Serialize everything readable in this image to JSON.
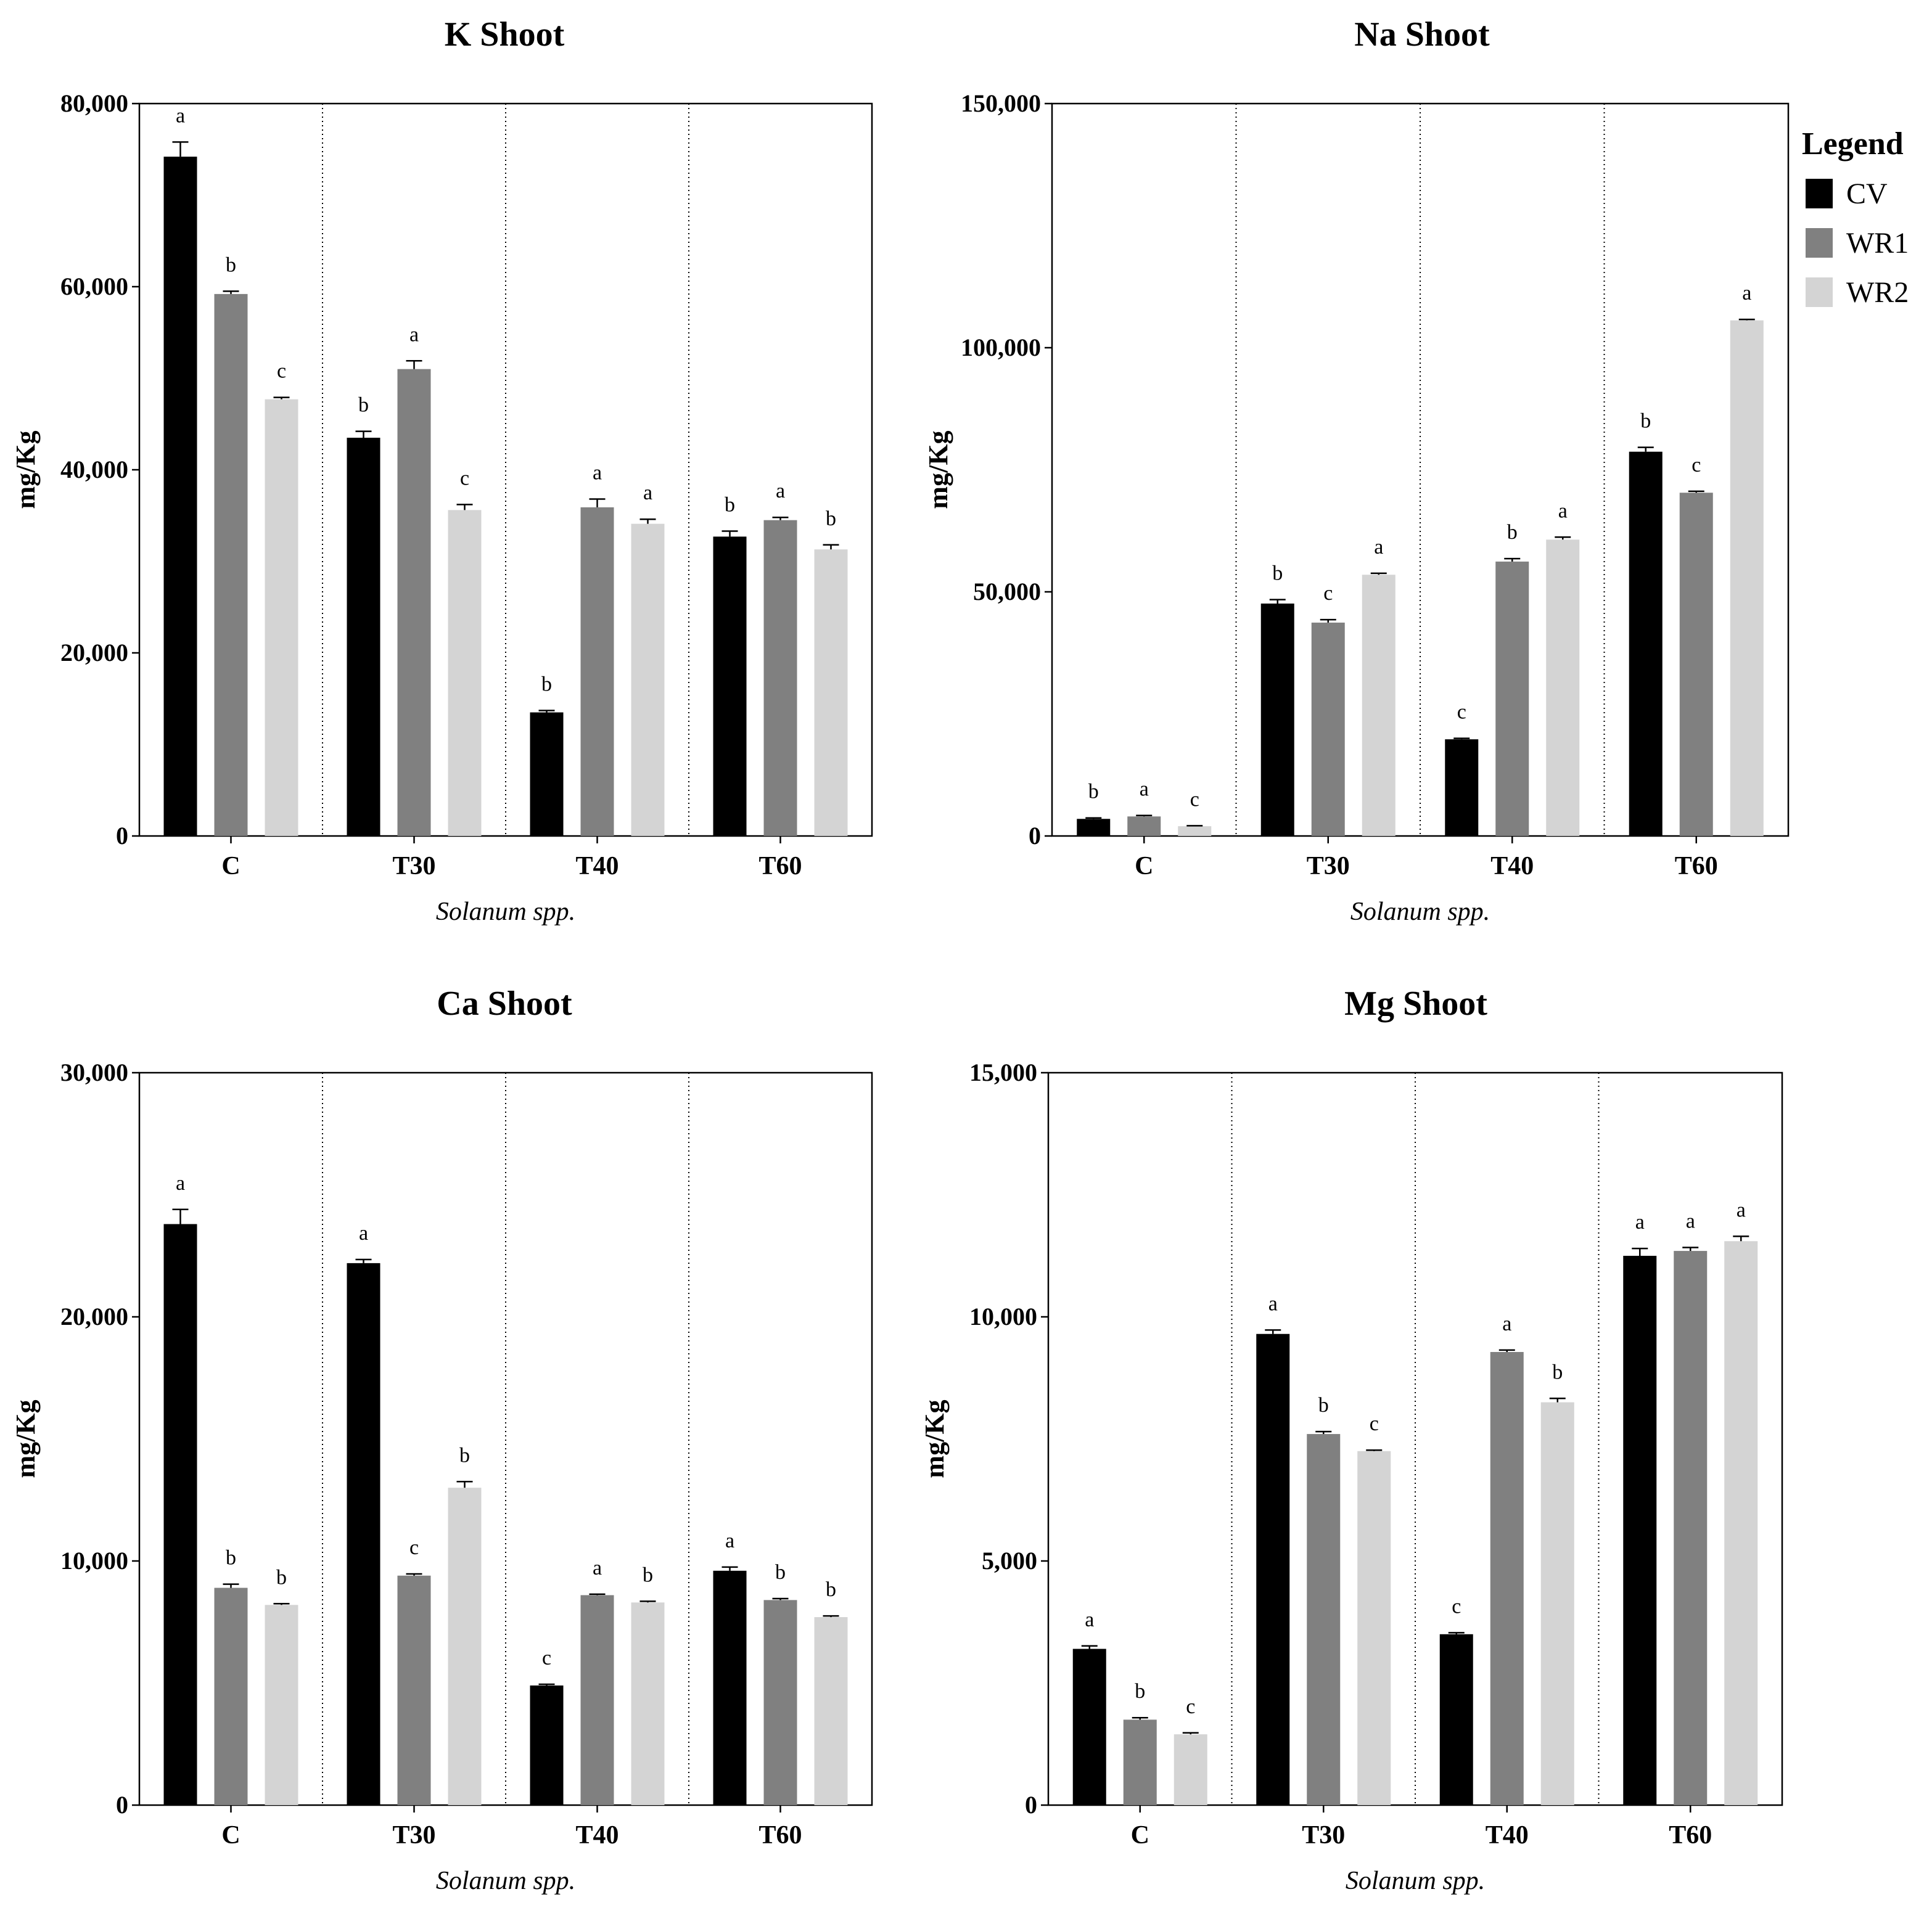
{
  "legend": {
    "title": "Legend",
    "items": [
      {
        "name": "CV",
        "color": "#000000"
      },
      {
        "name": "WR1",
        "color": "#808080"
      },
      {
        "name": "WR2",
        "color": "#d4d4d4"
      }
    ]
  },
  "chart_data": [
    {
      "type": "bar",
      "title": "K Shoot",
      "ylabel": "mg/Kg",
      "xlabel": "Solanum spp.",
      "categories": [
        "C",
        "T30",
        "T40",
        "T60"
      ],
      "ylim": [
        0,
        80000
      ],
      "yticks": [
        0,
        20000,
        40000,
        60000,
        80000
      ],
      "ytick_labels": [
        "0",
        "20,000",
        "40,000",
        "60,000",
        "80,000"
      ],
      "series": [
        {
          "name": "CV",
          "values": [
            74200,
            43500,
            13500,
            32700
          ],
          "errors": [
            1600,
            700,
            200,
            600
          ],
          "letters": [
            "a",
            "b",
            "b",
            "b"
          ]
        },
        {
          "name": "WR1",
          "values": [
            59200,
            51000,
            35900,
            34500
          ],
          "errors": [
            300,
            900,
            900,
            300
          ],
          "letters": [
            "b",
            "a",
            "a",
            "a"
          ]
        },
        {
          "name": "WR2",
          "values": [
            47700,
            35600,
            34100,
            31300
          ],
          "errors": [
            200,
            600,
            500,
            500
          ],
          "letters": [
            "c",
            "c",
            "a",
            "b"
          ]
        }
      ]
    },
    {
      "type": "bar",
      "title": "Na Shoot",
      "ylabel": "mg/Kg",
      "xlabel": "Solanum spp.",
      "categories": [
        "C",
        "T30",
        "T40",
        "T60"
      ],
      "ylim": [
        0,
        150000
      ],
      "yticks": [
        0,
        50000,
        100000,
        150000
      ],
      "ytick_labels": [
        "0",
        "50,000",
        "100,000",
        "150,000"
      ],
      "series": [
        {
          "name": "CV",
          "values": [
            3500,
            47600,
            19800,
            78700
          ],
          "errors": [
            200,
            800,
            200,
            900
          ],
          "letters": [
            "b",
            "b",
            "c",
            "b"
          ]
        },
        {
          "name": "WR1",
          "values": [
            4000,
            43700,
            56200,
            70300
          ],
          "errors": [
            200,
            600,
            600,
            300
          ],
          "letters": [
            "a",
            "c",
            "b",
            "c"
          ]
        },
        {
          "name": "WR2",
          "values": [
            2000,
            53500,
            60700,
            105600
          ],
          "errors": [
            100,
            300,
            500,
            200
          ],
          "letters": [
            "c",
            "a",
            "a",
            "a"
          ]
        }
      ]
    },
    {
      "type": "bar",
      "title": "Ca Shoot",
      "ylabel": "mg/Kg",
      "xlabel": "Solanum spp.",
      "categories": [
        "C",
        "T30",
        "T40",
        "T60"
      ],
      "ylim": [
        0,
        30000
      ],
      "yticks": [
        0,
        10000,
        20000,
        30000
      ],
      "ytick_labels": [
        "0",
        "10,000",
        "20,000",
        "30,000"
      ],
      "series": [
        {
          "name": "CV",
          "values": [
            23800,
            22200,
            4900,
            9600
          ],
          "errors": [
            600,
            150,
            50,
            150
          ],
          "letters": [
            "a",
            "a",
            "c",
            "a"
          ]
        },
        {
          "name": "WR1",
          "values": [
            8900,
            9400,
            8600,
            8400
          ],
          "errors": [
            150,
            70,
            40,
            60
          ],
          "letters": [
            "b",
            "c",
            "a",
            "b"
          ]
        },
        {
          "name": "WR2",
          "values": [
            8200,
            13000,
            8300,
            7700
          ],
          "errors": [
            50,
            250,
            50,
            50
          ],
          "letters": [
            "b",
            "b",
            "b",
            "b"
          ]
        }
      ]
    },
    {
      "type": "bar",
      "title": "Mg Shoot",
      "ylabel": "mg/Kg",
      "xlabel": "Solanum spp.",
      "categories": [
        "C",
        "T30",
        "T40",
        "T60"
      ],
      "ylim": [
        0,
        15000
      ],
      "yticks": [
        0,
        5000,
        10000,
        15000
      ],
      "ytick_labels": [
        "0",
        "5,000",
        "10,000",
        "15,000"
      ],
      "series": [
        {
          "name": "CV",
          "values": [
            3200,
            9650,
            3500,
            11250
          ],
          "errors": [
            60,
            80,
            30,
            150
          ],
          "letters": [
            "a",
            "a",
            "c",
            "a"
          ]
        },
        {
          "name": "WR1",
          "values": [
            1750,
            7600,
            9280,
            11350
          ],
          "errors": [
            40,
            50,
            40,
            70
          ],
          "letters": [
            "b",
            "b",
            "a",
            "a"
          ]
        },
        {
          "name": "WR2",
          "values": [
            1450,
            7250,
            8250,
            11550
          ],
          "errors": [
            30,
            20,
            80,
            100
          ],
          "letters": [
            "c",
            "c",
            "b",
            "a"
          ]
        }
      ]
    }
  ]
}
